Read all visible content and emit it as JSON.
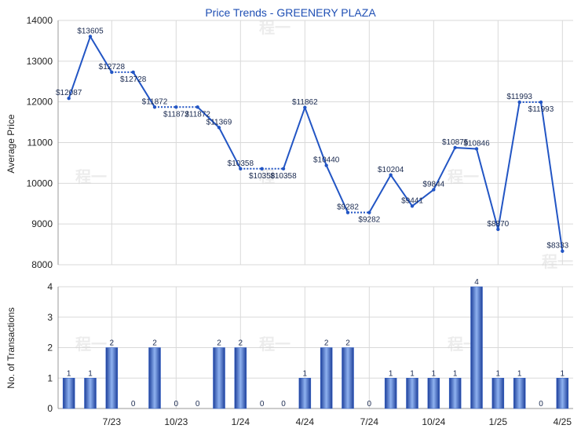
{
  "chart_data": [
    {
      "type": "line",
      "title": "Price Trends - GREENERY PLAZA",
      "ylabel": "Average Price",
      "ylim": [
        8000,
        14000
      ],
      "yticks": [
        8000,
        9000,
        10000,
        11000,
        12000,
        13000,
        14000
      ],
      "grid": true,
      "series": [
        {
          "values": [
            12087,
            13605,
            12728,
            12728,
            11872,
            11872,
            11872,
            11369,
            10358,
            10358,
            10358,
            11862,
            10440,
            9282,
            9282,
            10204,
            9441,
            9844,
            10875,
            10846,
            8870,
            11993,
            11993,
            8333
          ],
          "labels": [
            "$12087",
            "$13605",
            "$12728",
            "$12728",
            "$11872",
            "$11872",
            "$11872",
            "$11369",
            "$10358",
            "$10358",
            "$10358",
            "$11862",
            "$10440",
            "$9282",
            "$9282",
            "$10204",
            "$9441",
            "$9844",
            "$10875",
            "$10846",
            "$8870",
            "$11993",
            "$11993",
            "$8333"
          ],
          "color": "#2255c4"
        }
      ]
    },
    {
      "type": "bar",
      "ylabel": "No. of Transactions",
      "ylim": [
        0,
        4
      ],
      "yticks": [
        0,
        1,
        2,
        3,
        4
      ],
      "grid": true,
      "x_tick_labels": [
        "7/23",
        "10/23",
        "1/24",
        "4/24",
        "7/24",
        "10/24",
        "1/25",
        "4/25"
      ],
      "values": [
        1,
        1,
        2,
        0,
        2,
        0,
        0,
        2,
        2,
        0,
        0,
        1,
        2,
        2,
        0,
        1,
        1,
        1,
        1,
        4,
        1,
        1,
        0,
        1
      ],
      "bar_color": "#2f5fc8"
    }
  ],
  "watermark": "程一"
}
